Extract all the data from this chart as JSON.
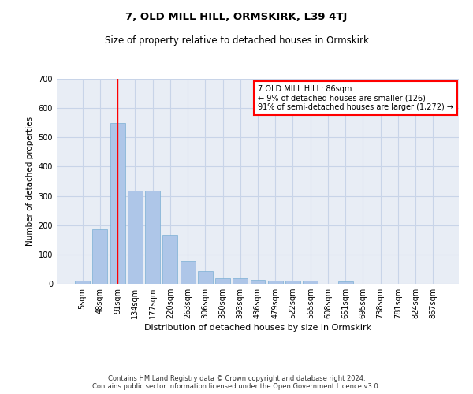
{
  "title1": "7, OLD MILL HILL, ORMSKIRK, L39 4TJ",
  "title2": "Size of property relative to detached houses in Ormskirk",
  "xlabel": "Distribution of detached houses by size in Ormskirk",
  "ylabel": "Number of detached properties",
  "categories": [
    "5sqm",
    "48sqm",
    "91sqm",
    "134sqm",
    "177sqm",
    "220sqm",
    "263sqm",
    "306sqm",
    "350sqm",
    "393sqm",
    "436sqm",
    "479sqm",
    "522sqm",
    "565sqm",
    "608sqm",
    "651sqm",
    "695sqm",
    "738sqm",
    "781sqm",
    "824sqm",
    "867sqm"
  ],
  "values": [
    10,
    185,
    550,
    318,
    317,
    168,
    77,
    42,
    18,
    18,
    14,
    12,
    12,
    10,
    0,
    8,
    0,
    0,
    0,
    0,
    0
  ],
  "bar_color": "#aec6e8",
  "bar_edge_color": "#7aafd4",
  "vline_x": 2,
  "vline_color": "red",
  "annotation_text": "7 OLD MILL HILL: 86sqm\n← 9% of detached houses are smaller (126)\n91% of semi-detached houses are larger (1,272) →",
  "annotation_box_color": "white",
  "annotation_box_edge_color": "red",
  "ylim": [
    0,
    700
  ],
  "yticks": [
    0,
    100,
    200,
    300,
    400,
    500,
    600,
    700
  ],
  "grid_color": "#c8d4e8",
  "bg_color": "#e8edf5",
  "footer": "Contains HM Land Registry data © Crown copyright and database right 2024.\nContains public sector information licensed under the Open Government Licence v3.0.",
  "title1_fontsize": 9.5,
  "title2_fontsize": 8.5,
  "xlabel_fontsize": 8,
  "ylabel_fontsize": 7.5,
  "tick_fontsize": 7,
  "footer_fontsize": 6,
  "annot_fontsize": 7
}
